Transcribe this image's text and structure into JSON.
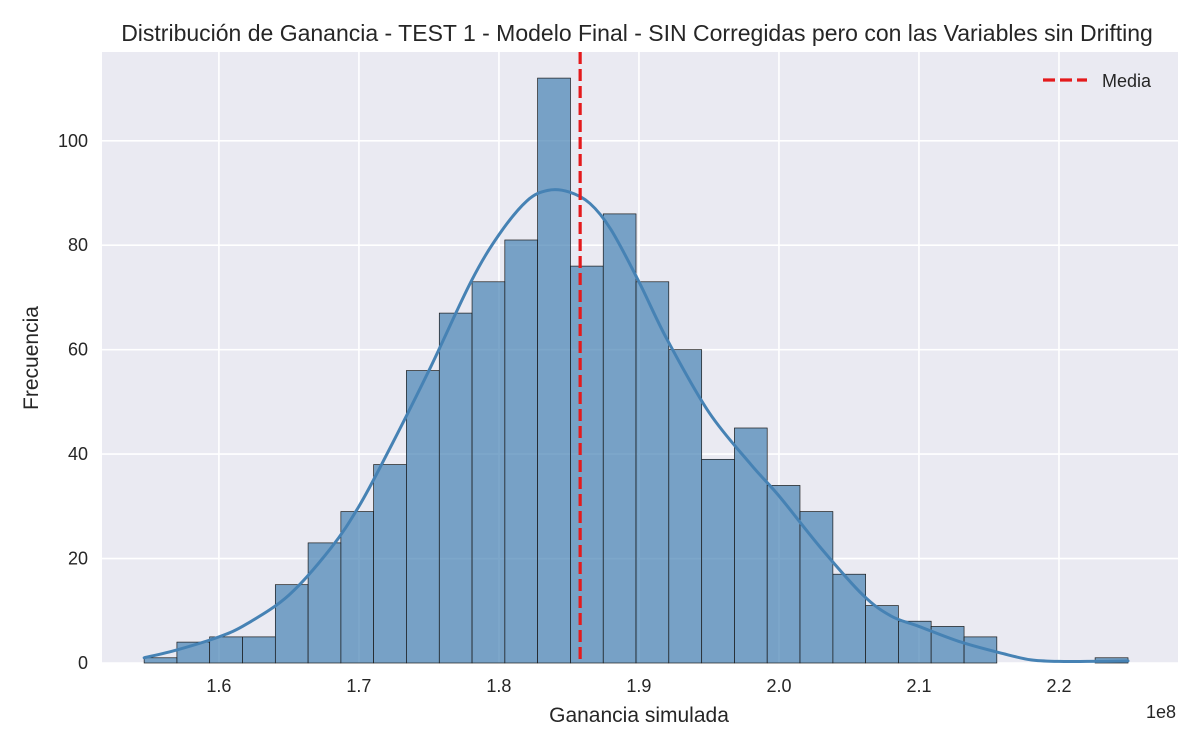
{
  "chart_data": {
    "type": "bar",
    "title": "Distribución de Ganancia - TEST 1 - Modelo Final  - SIN Corregidas pero con las Variables sin Drifting",
    "xlabel": "Ganancia simulada",
    "ylabel": "Frecuencia",
    "x_offset_label": "1e8",
    "x_scale": 100000000,
    "xlim": [
      1.5165,
      2.285
    ],
    "ylim": [
      0,
      117
    ],
    "x_ticks": [
      1.6,
      1.7,
      1.8,
      1.9,
      2.0,
      2.1,
      2.2
    ],
    "x_tick_labels": [
      "1.6",
      "1.7",
      "1.8",
      "1.9",
      "2.0",
      "2.1",
      "2.2"
    ],
    "y_ticks": [
      0,
      20,
      40,
      60,
      80,
      100
    ],
    "y_tick_labels": [
      "0",
      "20",
      "40",
      "60",
      "80",
      "100"
    ],
    "grid": true,
    "legend_position": "top-right",
    "bin_edges": [
      1.5466,
      1.57,
      1.5934,
      1.6168,
      1.6403,
      1.6637,
      1.6871,
      1.7105,
      1.7339,
      1.7574,
      1.7808,
      1.8042,
      1.8276,
      1.8511,
      1.8745,
      1.8979,
      1.9213,
      1.9448,
      1.9682,
      1.9916,
      2.015,
      2.0385,
      2.0619,
      2.0853,
      2.1087,
      2.1322,
      2.1556,
      2.179,
      2.2024,
      2.2258,
      2.2493
    ],
    "counts": [
      1,
      4,
      5,
      5,
      15,
      23,
      29,
      38,
      56,
      67,
      73,
      81,
      112,
      76,
      86,
      73,
      60,
      39,
      45,
      34,
      29,
      17,
      11,
      8,
      7,
      5,
      0,
      0,
      0,
      1
    ],
    "kde": {
      "x": [
        1.5466,
        1.57,
        1.6,
        1.62,
        1.65,
        1.68,
        1.7,
        1.72,
        1.75,
        1.78,
        1.8,
        1.82,
        1.835,
        1.85,
        1.865,
        1.88,
        1.9,
        1.92,
        1.95,
        1.98,
        2.0,
        2.03,
        2.06,
        2.08,
        2.1,
        2.13,
        2.16,
        2.18,
        2.2,
        2.22,
        2.2493
      ],
      "y": [
        1.0,
        2.5,
        5.0,
        7.5,
        13.0,
        22.0,
        30.0,
        40.0,
        56.0,
        73.0,
        82.0,
        88.5,
        90.5,
        90.2,
        88.0,
        83.0,
        73.0,
        62.0,
        48.0,
        38.0,
        32.0,
        22.0,
        13.0,
        9.0,
        7.0,
        4.0,
        1.8,
        0.6,
        0.3,
        0.3,
        0.4
      ]
    },
    "mean_x": 1.858,
    "legend": [
      {
        "label": "Media",
        "style": "dashed",
        "color": "#e41a1c"
      }
    ],
    "colors": {
      "bar_fill": "#4682b4",
      "bar_opacity": 0.7,
      "kde_line": "#4682b4",
      "mean_line": "#e41a1c",
      "plot_background": "#eaeaf2",
      "grid": "#ffffff"
    }
  }
}
